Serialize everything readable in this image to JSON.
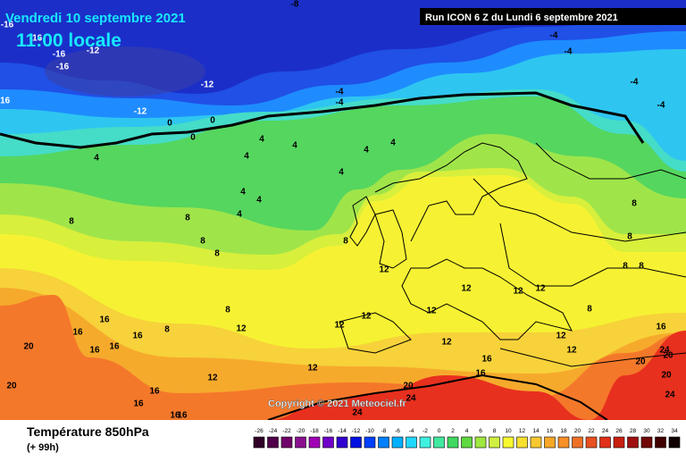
{
  "header": {
    "date": "Vendredi 10 septembre 2021",
    "time": "11:00 locale",
    "run": "Run ICON 6 Z du Lundi 6 septembre 2021"
  },
  "footer": {
    "title": "Température 850hPa",
    "lead": "(+ 99h)",
    "copyright": "Copyright © 2021 Meteociel.fr"
  },
  "colorbar": {
    "ticks": [
      -26,
      -24,
      -22,
      -20,
      -18,
      -16,
      -14,
      -12,
      -10,
      -8,
      -6,
      -4,
      -2,
      0,
      2,
      4,
      6,
      8,
      10,
      12,
      14,
      16,
      18,
      20,
      22,
      24,
      26,
      28,
      30,
      32,
      34
    ]
  },
  "contour_labels": [
    -16,
    -16,
    -16,
    -16,
    -16,
    -12,
    -12,
    -12,
    0,
    0,
    0,
    -4,
    -4,
    -4,
    -4,
    -4,
    -4,
    -8,
    4,
    4,
    4,
    4,
    4,
    4,
    4,
    4,
    4,
    4,
    8,
    8,
    8,
    8,
    8,
    8,
    8,
    8,
    8,
    8,
    8,
    8,
    12,
    12,
    12,
    12,
    12,
    12,
    12,
    12,
    12,
    12,
    12,
    12,
    12,
    16,
    16,
    16,
    16,
    16,
    16,
    16,
    16,
    16,
    16,
    16,
    16,
    20,
    20,
    20,
    20,
    20,
    20,
    24,
    24,
    24,
    24
  ]
}
